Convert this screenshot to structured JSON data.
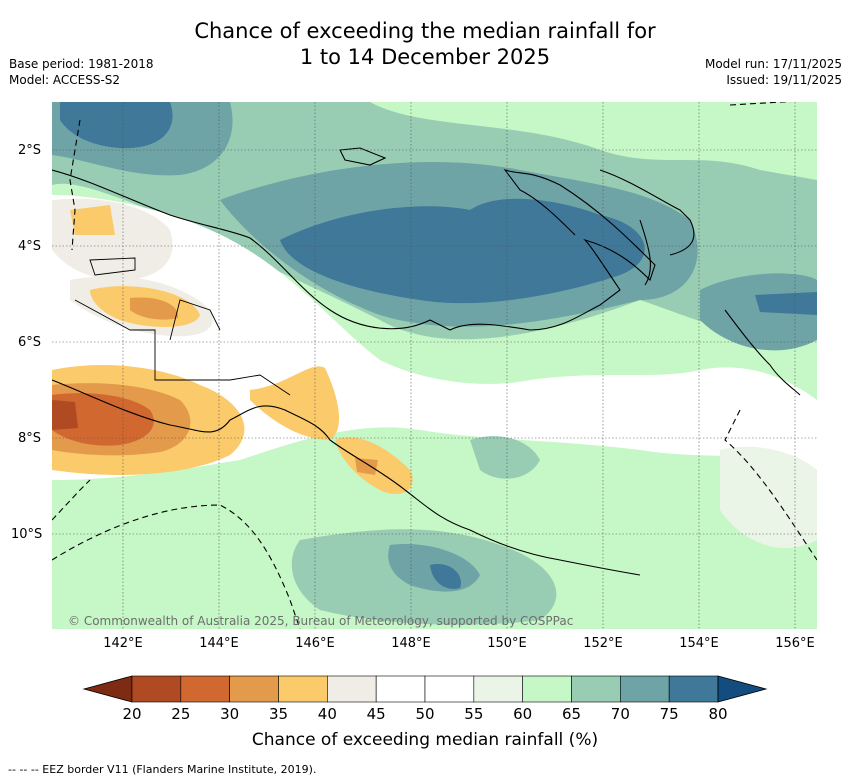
{
  "title_line1": "Chance of exceeding the median rainfall for",
  "title_line2": "1 to 14 December 2025",
  "base_period": "Base period: 1981-2018",
  "model": "Model: ACCESS-S2",
  "model_run": "Model run: 17/11/2025",
  "issued": "Issued: 19/11/2025",
  "lat_labels": [
    "2°S",
    "4°S",
    "6°S",
    "8°S",
    "10°S"
  ],
  "lon_labels": [
    "142°E",
    "144°E",
    "146°E",
    "148°E",
    "150°E",
    "152°E",
    "154°E",
    "156°E"
  ],
  "copyright": "© Commonwealth of Australia 2025, Bureau of Meteorology, supported by COSPPac",
  "colorbar": {
    "ticks": [
      "20",
      "25",
      "30",
      "35",
      "40",
      "45",
      "50",
      "55",
      "60",
      "65",
      "70",
      "75",
      "80"
    ],
    "colors": [
      "#7d2b12",
      "#b04a22",
      "#d1682f",
      "#e39a4b",
      "#fbca6a",
      "#f0ede6",
      "#ffffff",
      "#ffffff",
      "#eaf5e7",
      "#c6f7c6",
      "#98cdb4",
      "#6ea4a6",
      "#3f7898",
      "#134c7e"
    ],
    "label": "Chance of exceeding median rainfall (%)"
  },
  "legend_text": "--  --  -- EEZ border V11 (Flanders Marine Institute, 2019)."
}
